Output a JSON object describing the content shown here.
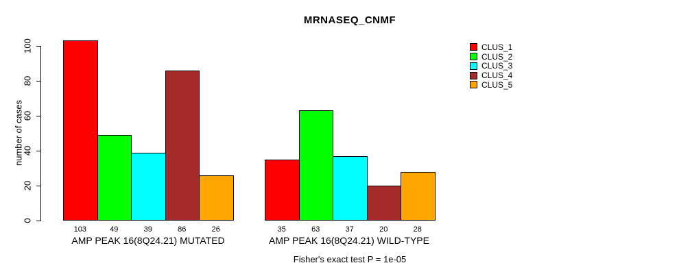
{
  "chart_data": {
    "type": "bar",
    "title": "MRNASEQ_CNMF",
    "ylabel": "number of cases",
    "xlabel": "",
    "ylim": [
      0,
      100
    ],
    "yticks": [
      0,
      20,
      40,
      60,
      80,
      100
    ],
    "grid": false,
    "series": [
      "CLUS_1",
      "CLUS_2",
      "CLUS_3",
      "CLUS_4",
      "CLUS_5"
    ],
    "series_colors": [
      "#FF0000",
      "#00FF00",
      "#00FFFF",
      "#A52A2A",
      "#FFA500"
    ],
    "groups": [
      {
        "label": "AMP PEAK 16(8Q24.21) MUTATED",
        "values": [
          103,
          49,
          39,
          86,
          26
        ]
      },
      {
        "label": "AMP PEAK 16(8Q24.21) WILD-TYPE",
        "values": [
          35,
          63,
          37,
          20,
          28
        ]
      }
    ],
    "legend": {
      "position": "top-right",
      "entries": [
        {
          "label": "CLUS_1",
          "color": "#FF0000"
        },
        {
          "label": "CLUS_2",
          "color": "#00FF00"
        },
        {
          "label": "CLUS_3",
          "color": "#00FFFF"
        },
        {
          "label": "CLUS_4",
          "color": "#A52A2A"
        },
        {
          "label": "CLUS_5",
          "color": "#FFA500"
        }
      ]
    },
    "footnote": "Fisher's exact test P = 1e-05"
  }
}
